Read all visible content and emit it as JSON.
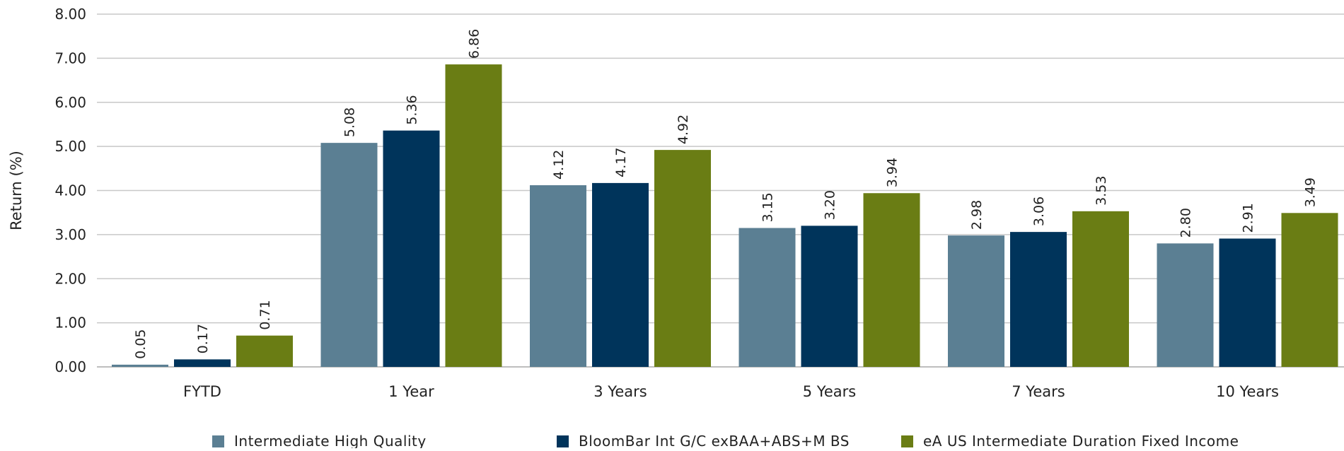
{
  "chart_data": {
    "type": "bar",
    "title": "",
    "xlabel": "",
    "ylabel": "Return (%)",
    "ylim": [
      0,
      8
    ],
    "ytick_step": 1,
    "ytick_labels": [
      "0.00",
      "1.00",
      "2.00",
      "3.00",
      "4.00",
      "5.00",
      "6.00",
      "7.00",
      "8.00"
    ],
    "grid": "horizontal",
    "legend_position": "bottom",
    "categories": [
      "FYTD",
      "1 Year",
      "3 Years",
      "5 Years",
      "7 Years",
      "10 Years"
    ],
    "series": [
      {
        "name": "Intermediate High Quality",
        "color": "#5b7f93",
        "values": [
          0.05,
          5.08,
          4.12,
          3.15,
          2.98,
          2.8
        ]
      },
      {
        "name": "BloomBar Int G/C exBAA+ABS+M BS",
        "color": "#00345b",
        "values": [
          0.17,
          5.36,
          4.17,
          3.2,
          3.06,
          2.91
        ]
      },
      {
        "name": "eA US Intermediate Duration Fixed Income",
        "color": "#6a7d14",
        "values": [
          0.71,
          6.86,
          4.92,
          3.94,
          3.53,
          3.49
        ]
      }
    ]
  }
}
